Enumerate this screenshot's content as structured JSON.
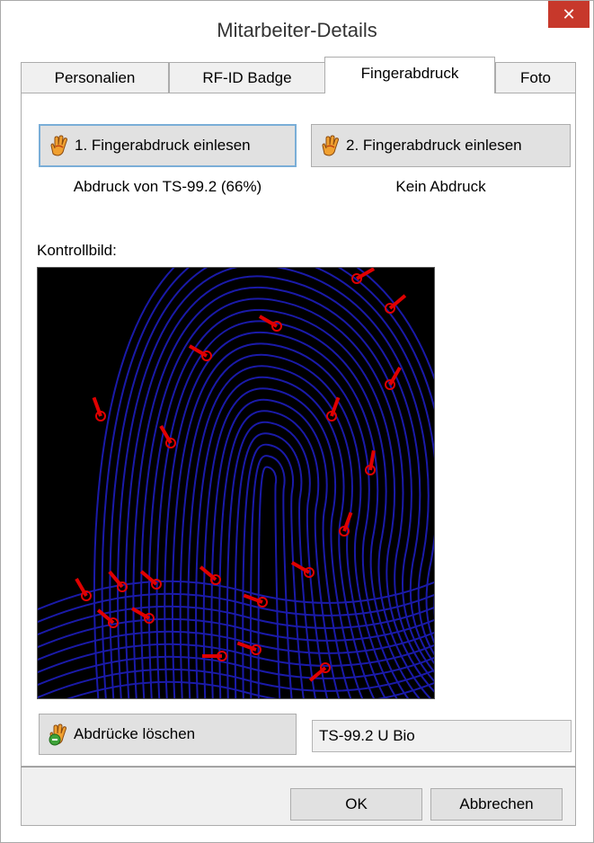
{
  "window": {
    "title": "Mitarbeiter-Details",
    "close_glyph": "✕"
  },
  "tabs": [
    {
      "label": "Personalien"
    },
    {
      "label": "RF-ID Badge"
    },
    {
      "label": "Fingerabdruck"
    },
    {
      "label": "Foto"
    }
  ],
  "fingerprint": {
    "scan1_button": "1. Fingerabdruck einlesen",
    "scan1_status": "Abdruck von TS-99.2 (66%)",
    "scan2_button": "2. Fingerabdruck einlesen",
    "scan2_status": "Kein Abdruck",
    "control_label": "Kontrollbild:",
    "clear_button": "Abdrücke löschen",
    "device_value": "TS-99.2 U Bio"
  },
  "footer": {
    "ok_label": "OK",
    "cancel_label": "Abbrechen"
  },
  "icons": {
    "hand": "hand-scan-icon",
    "clear": "hand-clear-icon",
    "close": "close-icon"
  },
  "colors": {
    "ridge": "#1a1aa8",
    "minutia": "#e00000",
    "close_button": "#c7382b"
  }
}
